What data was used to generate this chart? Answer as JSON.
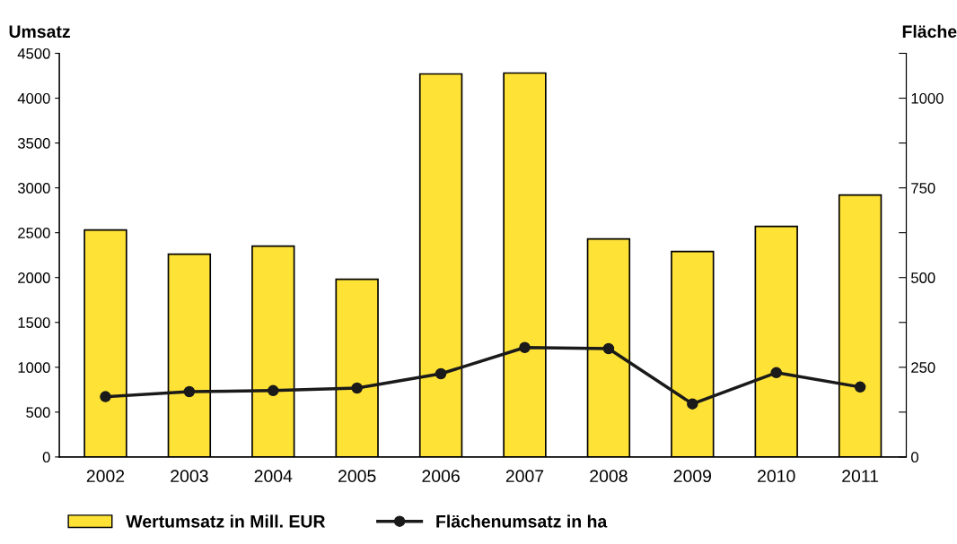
{
  "chart_data": {
    "type": "bar",
    "categories": [
      "2002",
      "2003",
      "2004",
      "2005",
      "2006",
      "2007",
      "2008",
      "2009",
      "2010",
      "2011"
    ],
    "series": [
      {
        "name": "Wertumsatz in Mill. EUR",
        "color": "#ffe236",
        "values": [
          2530,
          2260,
          2350,
          1980,
          4270,
          4280,
          2430,
          2290,
          2570,
          2920
        ]
      },
      {
        "name": "Flächenumsatz in ha",
        "type": "line",
        "axis": "y2",
        "color": "#1a1a1a",
        "marker": "circle",
        "values": [
          168,
          182,
          185,
          192,
          232,
          305,
          302,
          148,
          235,
          195
        ]
      }
    ],
    "ylabel": "Umsatz",
    "y2label": "Fläche",
    "ylim": [
      0,
      4500
    ],
    "yticks": [
      0,
      500,
      1000,
      1500,
      2000,
      2500,
      3000,
      3500,
      4000,
      4500
    ],
    "y2lim": [
      0,
      1125
    ],
    "y2ticks": [
      0,
      {
        "value": 125,
        "label": null
      },
      250,
      {
        "value": 375,
        "label": null
      },
      500,
      {
        "value": 625,
        "label": null
      },
      750,
      {
        "value": 875,
        "label": null
      },
      1000,
      {
        "value": 1125,
        "label": null
      }
    ],
    "grid": false,
    "legend": "bottom left"
  }
}
